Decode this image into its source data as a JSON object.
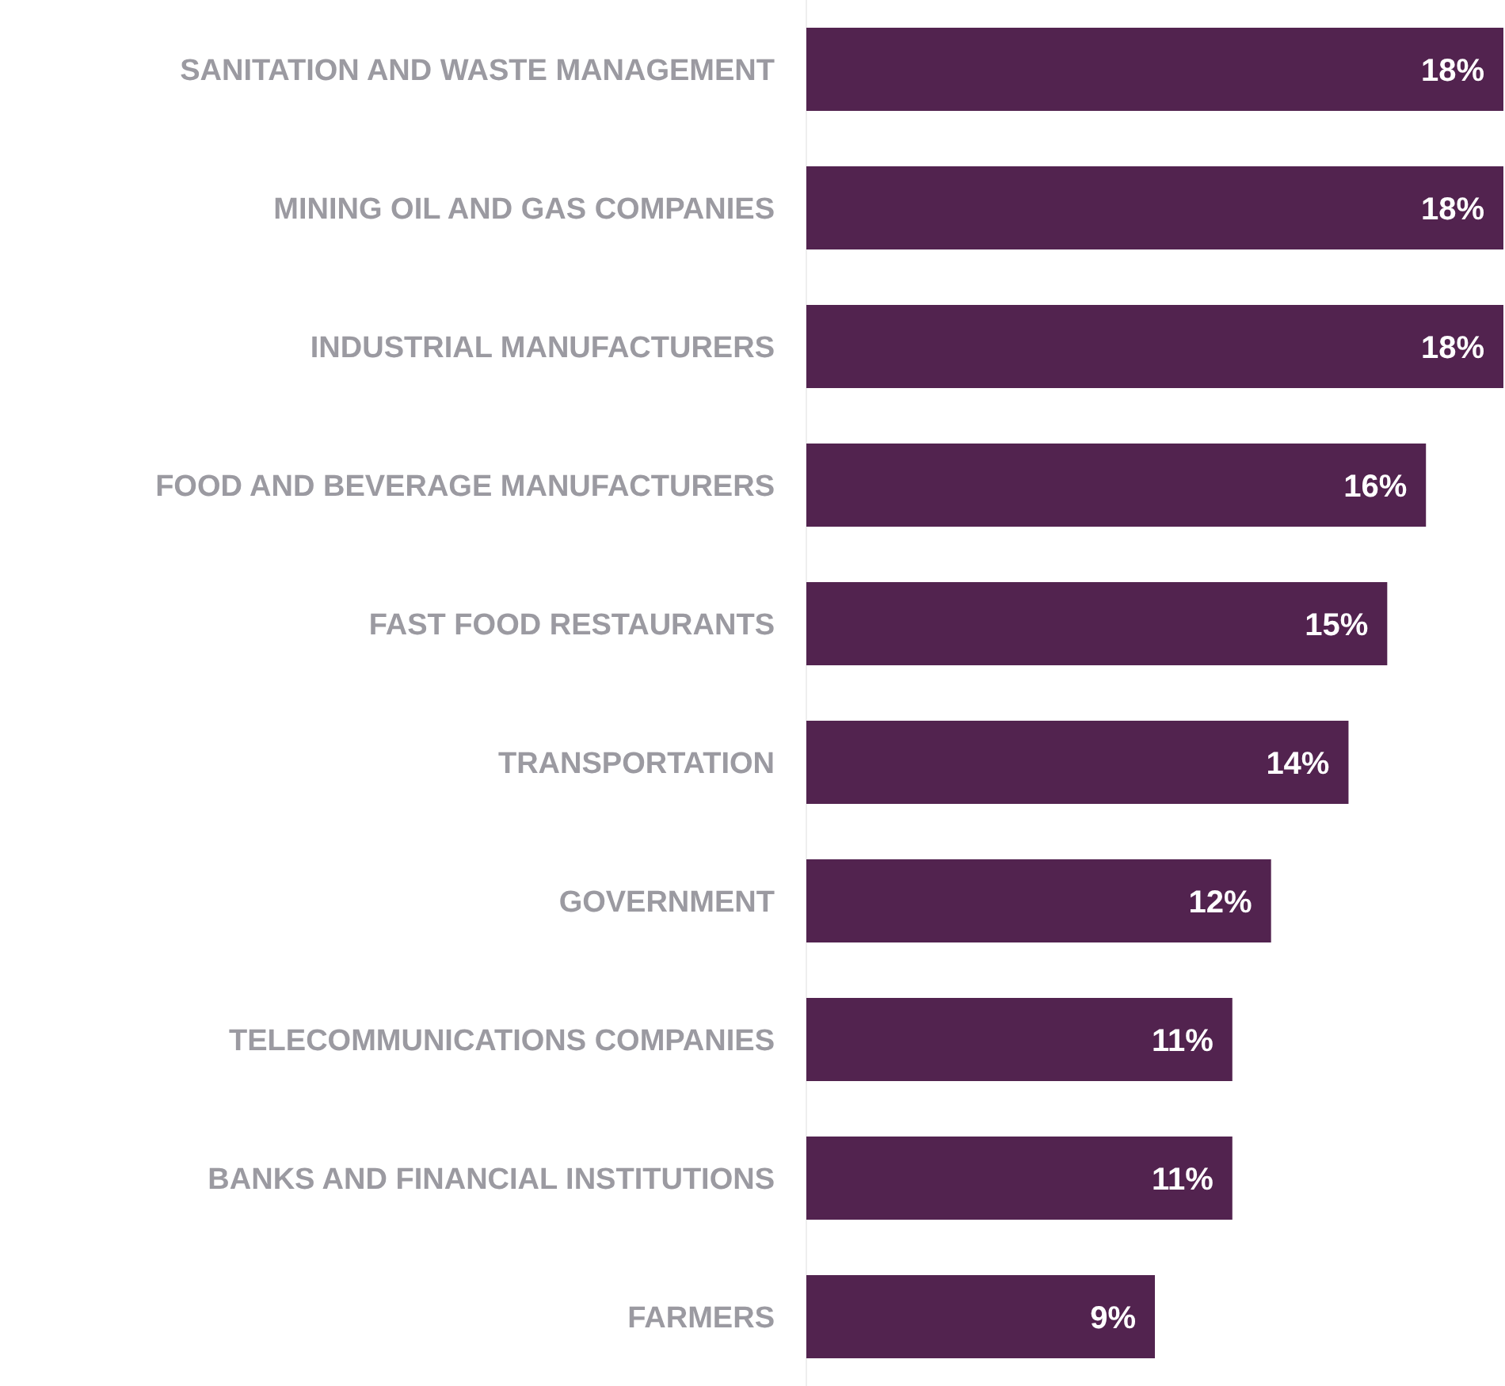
{
  "chart_data": {
    "type": "bar",
    "orientation": "horizontal",
    "categories": [
      "SANITATION AND WASTE MANAGEMENT",
      "MINING OIL AND GAS COMPANIES",
      "INDUSTRIAL MANUFACTURERS",
      "FOOD AND BEVERAGE MANUFACTURERS",
      "FAST FOOD RESTAURANTS",
      "TRANSPORTATION",
      "GOVERNMENT",
      "TELECOMMUNICATIONS COMPANIES",
      "BANKS AND FINANCIAL INSTITUTIONS",
      "FARMERS"
    ],
    "values": [
      18,
      18,
      18,
      16,
      15,
      14,
      12,
      11,
      11,
      9
    ],
    "value_labels": [
      "18%",
      "18%",
      "18%",
      "16%",
      "15%",
      "14%",
      "12%",
      "11%",
      "11%",
      "9%"
    ],
    "color": "#52234f"
  }
}
